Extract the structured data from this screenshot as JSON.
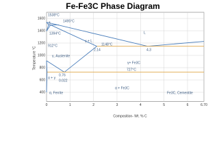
{
  "chart_data": {
    "type": "line",
    "title": "Fe-Fe3C Phase Diagram",
    "x_label": "Composition- Wt. % C",
    "y_label": "Temperature °C",
    "xlim": [
      0,
      6.7
    ],
    "xticks": [
      0,
      1,
      2,
      3,
      4,
      5,
      6,
      {
        "value": 6.7,
        "label": "6.70"
      }
    ],
    "ylim": [
      250,
      1700
    ],
    "yticks": [
      400,
      600,
      800,
      1000,
      1200,
      1400,
      1600
    ],
    "grid": true,
    "series": [
      {
        "color": "#4a7ebb",
        "x": [
          0,
          4.3
        ],
        "values": [
          1538,
          1148
        ]
      },
      {
        "color": "#4a7ebb",
        "x": [
          4.3,
          6.7
        ],
        "values": [
          1148,
          1227
        ]
      },
      {
        "color": "#4a7ebb",
        "x": [
          0.17,
          2.14
        ],
        "values": [
          1495,
          1148
        ]
      },
      {
        "color": "#e0a84a",
        "x": [
          2.14,
          6.7
        ],
        "values": [
          1148,
          1148
        ]
      },
      {
        "color": "#4a7ebb",
        "x": [
          2.14,
          0.76
        ],
        "values": [
          1148,
          727
        ]
      },
      {
        "color": "#4a7ebb",
        "x": [
          0,
          0.76
        ],
        "values": [
          912,
          727
        ]
      },
      {
        "color": "#e0a84a",
        "x": [
          0.022,
          6.7
        ],
        "values": [
          727,
          727
        ]
      },
      {
        "color": "#4a7ebb",
        "x": [
          0,
          0.022,
          0
        ],
        "values": [
          912,
          727,
          400
        ]
      },
      {
        "color": "#4a7ebb",
        "x": [
          0,
          0.09,
          0.53
        ],
        "values": [
          1538,
          1495,
          1495
        ]
      },
      {
        "color": "#4a7ebb",
        "x": [
          0.09,
          0
        ],
        "values": [
          1495,
          1394
        ]
      },
      {
        "color": "#4a7ebb",
        "x": [
          0.17,
          0
        ],
        "values": [
          1495,
          1394
        ]
      }
    ],
    "annotations": [
      "1538°C",
      "1495°C",
      "1394°C",
      "912°C",
      "1148°C",
      "727°C",
      "L",
      "γ + L",
      "2.14",
      "4.3",
      "γ, Austenite",
      "γ+ Fe3C",
      "α + γ",
      "0.76",
      "0.022",
      "α, Ferrite",
      "α + Fe3C",
      "Fe3C, Cementite",
      "δ"
    ]
  }
}
